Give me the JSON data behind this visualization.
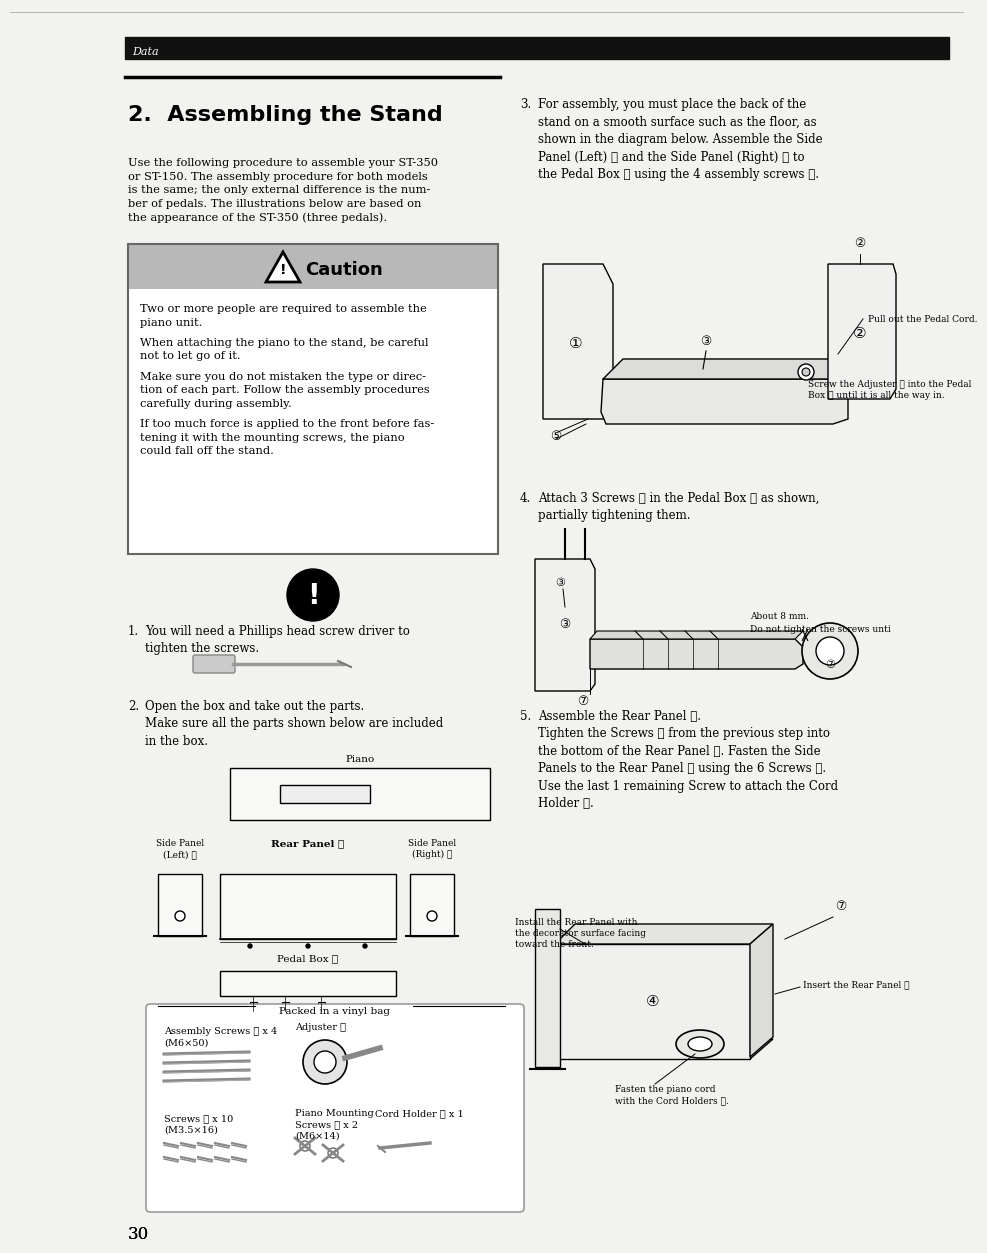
{
  "page_bg": "#f2f2ee",
  "header_bar_color": "#111111",
  "header_text": "Data",
  "title": "2.  Assembling the Stand",
  "intro_text": "Use the following procedure to assemble your ST-350\nor ST-150. The assembly procedure for both models\nis the same; the only external difference is the num-\nber of pedals. The illustrations below are based on\nthe appearance of the ST-350 (three pedals).",
  "caution_bg": "#b8b8b8",
  "caution_title": "Caution",
  "caution_lines": [
    "Two or more people are required to assemble the",
    "piano unit.",
    "",
    "When attaching the piano to the stand, be careful",
    "not to let go of it.",
    "",
    "Make sure you do not mistaken the type or direc-",
    "tion of each part. Follow the assembly procedures",
    "carefully during assembly.",
    "",
    "If too much force is applied to the front before fas-",
    "tening it with the mounting screws, the piano",
    "could fall off the stand."
  ],
  "step1_num": "1.",
  "step1_text": "You will need a Phillips head screw driver to\ntighten the screws.",
  "step2_num": "2.",
  "step2_text": "Open the box and take out the parts.\nMake sure all the parts shown below are included\nin the box.",
  "step3_num": "3.",
  "step3_text": "For assembly, you must place the back of the\nstand on a smooth surface such as the floor, as\nshown in the diagram below. Assemble the Side\nPanel (Left) ① and the Side Panel (Right) ② to\nthe Pedal Box ③ using the 4 assembly screws ⑤.",
  "step4_num": "4.",
  "step4_text": "Attach 3 Screws ⑦ in the Pedal Box ③ as shown,\npartially tightening them.",
  "step5_num": "5.",
  "step5_text": "Assemble the Rear Panel ④.\nTighten the Screws ⑦ from the previous step into\nthe bottom of the Rear Panel ④. Fasten the Side\nPanels to the Rear Panel ④ using the 6 Screws ⑦.\nUse the last 1 remaining Screw to attach the Cord\nHolder ⑨.",
  "page_number": "30",
  "label_piano": "Piano",
  "label_side_left": "Side Panel\n(Left) ①",
  "label_rear": "Rear Panel ④",
  "label_side_right": "Side Panel\n(Right) ②",
  "label_pedal": "Pedal Box ③",
  "label_packed": "Packed in a vinyl bag",
  "label_assembly_screws": "Assembly Screws ⑤ x 4\n(M6×50)",
  "label_adjuster": "Adjuster ⑥",
  "label_screws7": "Screws ⑦ x 10\n(M3.5×16)",
  "label_piano_mounting": "Piano Mounting\nScrews ⑧ x 2\n(M6×14)",
  "label_cord_holder": "Cord Holder ⑨ x 1",
  "note_pull_cord": "Pull out the Pedal Cord.",
  "note_adjuster": "Screw the Adjuster ⑥ into the Pedal\nBox ③ until it is all the way in.",
  "note_8mm": "About 8 mm.",
  "note_no_tighten": "Do not tighten the screws unti",
  "note_install_rear": "Install the Rear Panel with\nthe decorator surface facing\ntoward the front.",
  "note_insert_rear": "Insert the Rear Panel ④",
  "note_cord": "Fasten the piano cord\nwith the Cord Holders ⑨."
}
